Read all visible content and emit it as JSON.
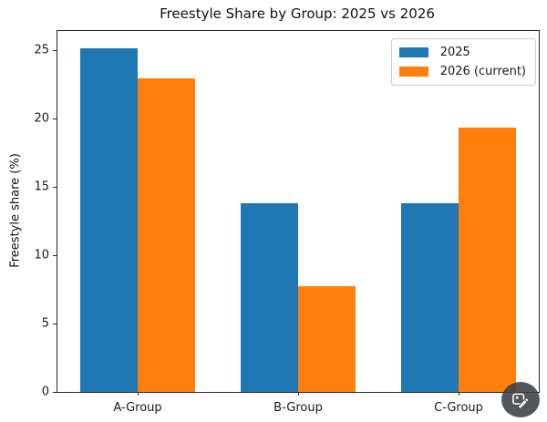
{
  "title": "Freestyle Share by Group: 2025 vs 2026",
  "chart_data": {
    "type": "bar",
    "title": "Freestyle Share by Group: 2025 vs 2026",
    "categories": [
      "A-Group",
      "B-Group",
      "C-Group"
    ],
    "series": [
      {
        "name": "2025",
        "color": "#1f77b4",
        "values": [
          25.1,
          13.8,
          13.8
        ]
      },
      {
        "name": "2026 (current)",
        "color": "#ff7f0e",
        "values": [
          22.9,
          7.7,
          19.3
        ]
      }
    ],
    "xlabel": "",
    "ylabel": "Freestyle share (%)",
    "yticks": [
      0,
      5,
      10,
      15,
      20,
      25
    ],
    "ylim": [
      0,
      26.4
    ],
    "grid": false,
    "legend_position": "upper right"
  },
  "colors": {
    "background": "#ffffff",
    "axis": "#262626",
    "text": "#1a1a1a",
    "legend_border": "#cccccc",
    "series_blue": "#1f77b4",
    "series_orange": "#ff7f0e",
    "badge_background": "#3c4043",
    "badge_glyph": "#ffffff"
  },
  "overlay": {
    "edit_badge": "image-edit-icon"
  }
}
